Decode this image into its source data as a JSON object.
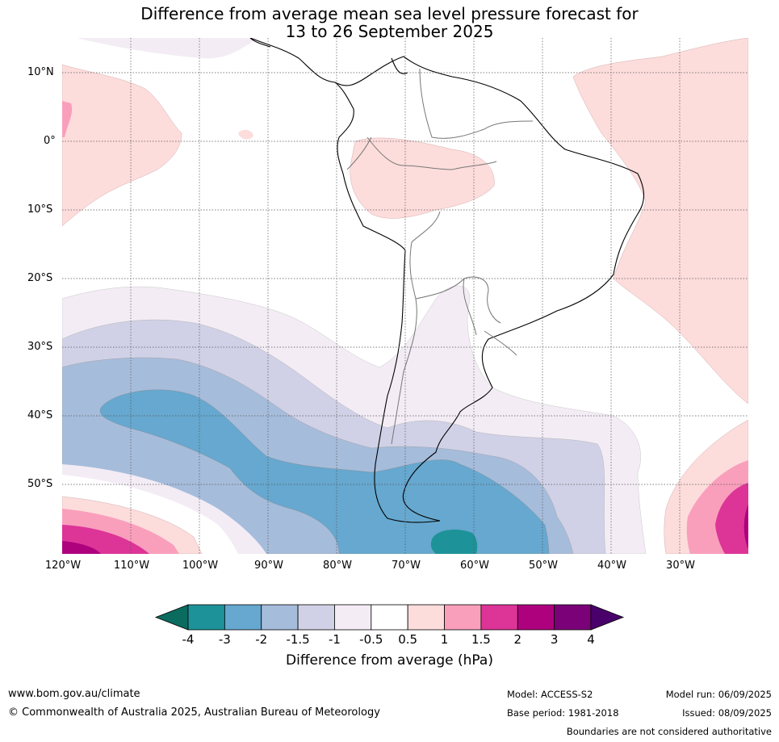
{
  "title_line1": "Difference from average mean sea level pressure forecast for",
  "title_line2": "13 to 26 September 2025",
  "lat_labels": [
    "10°N",
    "0°",
    "10°S",
    "20°S",
    "30°S",
    "40°S",
    "50°S"
  ],
  "lon_labels": [
    "120°W",
    "110°W",
    "100°W",
    "90°W",
    "80°W",
    "70°W",
    "60°W",
    "50°W",
    "40°W",
    "30°W"
  ],
  "colorbar": {
    "ticks": [
      "-4",
      "-3",
      "-2",
      "-1.5",
      "-1",
      "-0.5",
      "0.5",
      "1",
      "1.5",
      "2",
      "3",
      "4"
    ],
    "colors": [
      "#1d9399",
      "#66a8cf",
      "#a6bcdb",
      "#d0d1e6",
      "#f3ecf5",
      "#ffffff",
      "#fddcdc",
      "#f99fbc",
      "#dd3497",
      "#ae017e",
      "#7a0177"
    ],
    "under_color": "#0b6b5e",
    "over_color": "#49006a",
    "title": "Difference from average (hPa)"
  },
  "footer": {
    "website": "www.bom.gov.au/climate",
    "copyright": "© Commonwealth of Australia 2025, Australian Bureau of Meteorology",
    "model": "Model: ACCESS-S2",
    "model_run": "Model run: 06/09/2025",
    "base_period": "Base period: 1981-2018",
    "issued": "Issued: 08/09/2025",
    "boundaries_note": "Boundaries are not considered authoritative"
  }
}
